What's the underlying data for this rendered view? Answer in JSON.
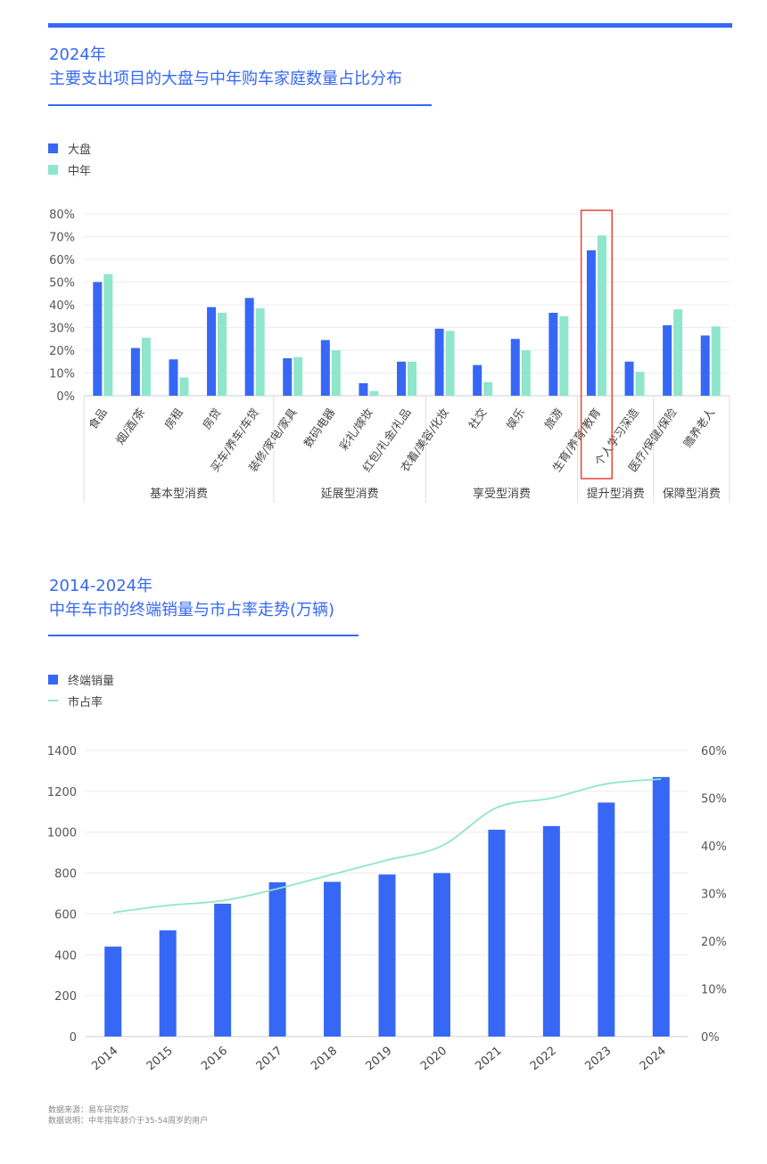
{
  "chart_data": [
    {
      "type": "bar",
      "title": "2024年",
      "subtitle": "主要支出项目的大盘与中年购车家庭数量占比分布",
      "categories": [
        "食品",
        "烟/酒/茶",
        "房租",
        "房贷",
        "买车/养车/车贷",
        "装修/家电/家具",
        "数码电器",
        "彩礼/嫁妆",
        "红包/礼金/礼品",
        "衣着/美容/化妆",
        "社交",
        "娱乐",
        "旅游",
        "生育/养育/教育",
        "个人学习深造",
        "医疗/保健/保险",
        "赡养老人"
      ],
      "series": [
        {
          "name": "大盘",
          "color": "#3668f5",
          "values": [
            50,
            21,
            16,
            39,
            43,
            16.5,
            24.5,
            5.5,
            15,
            29.5,
            13.5,
            25,
            36.5,
            64,
            15,
            31,
            26.5
          ]
        },
        {
          "name": "中年",
          "color": "#8ee6cb",
          "values": [
            53.5,
            25.5,
            8,
            36.5,
            38.5,
            17,
            20,
            2,
            15,
            28.5,
            6,
            20,
            35,
            70.5,
            10.5,
            38,
            30.5
          ]
        }
      ],
      "yticks": [
        "0%",
        "10%",
        "20%",
        "30%",
        "40%",
        "50%",
        "60%",
        "70%",
        "80%"
      ],
      "ylim": [
        0,
        80
      ],
      "groups": [
        {
          "label": "基本型消费",
          "from": 0,
          "to": 4
        },
        {
          "label": "延展型消费",
          "from": 5,
          "to": 8
        },
        {
          "label": "享受型消费",
          "from": 9,
          "to": 12
        },
        {
          "label": "提升型消费",
          "from": 13,
          "to": 14
        },
        {
          "label": "保障型消费",
          "from": 15,
          "to": 16
        }
      ],
      "highlight_index": 13,
      "legend": "top-left",
      "grid": true
    },
    {
      "type": "bar",
      "title": "2014-2024年",
      "subtitle": "中年车市的终端销量与市占率走势(万辆)",
      "categories": [
        "2014",
        "2015",
        "2016",
        "2017",
        "2018",
        "2019",
        "2020",
        "2021",
        "2022",
        "2023",
        "2024"
      ],
      "bar_series": {
        "name": "终端销量",
        "color": "#3668f5",
        "values": [
          440,
          520,
          650,
          755,
          757,
          793,
          800,
          1012,
          1030,
          1145,
          1270
        ]
      },
      "line_series": {
        "name": "市占率",
        "color": "#8ee6cb",
        "values": [
          26,
          27.5,
          28.5,
          31,
          34,
          37,
          40,
          48,
          50,
          53,
          54
        ]
      },
      "yticks_left": [
        "0",
        "200",
        "400",
        "600",
        "800",
        "1000",
        "1200",
        "1400"
      ],
      "ylim_left": [
        0,
        1400
      ],
      "yticks_right": [
        "0%",
        "10%",
        "20%",
        "30%",
        "40%",
        "50%",
        "60%"
      ],
      "ylim_right": [
        0,
        60
      ],
      "legend": "top-left",
      "grid": true
    }
  ],
  "footnotes": [
    "数据来源：易车研究院",
    "数据说明：中年指年龄介于35-54周岁的用户"
  ]
}
